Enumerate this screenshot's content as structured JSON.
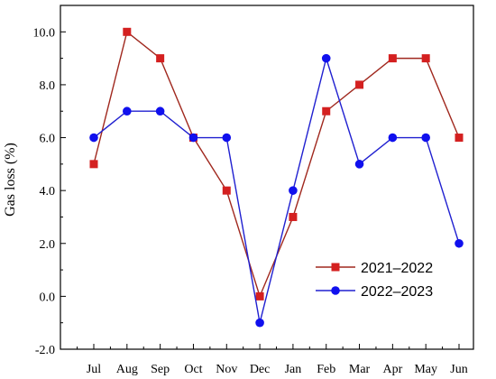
{
  "chart_data": {
    "type": "line",
    "title": "",
    "xlabel": "",
    "ylabel": "Gas loss (%)",
    "categories": [
      "Jul",
      "Aug",
      "Sep",
      "Oct",
      "Nov",
      "Dec",
      "Jan",
      "Feb",
      "Mar",
      "Apr",
      "May",
      "Jun"
    ],
    "ylim": [
      -2.0,
      11.0
    ],
    "yticks": [
      "-2.0",
      "0.0",
      "2.0",
      "4.0",
      "6.0",
      "8.0",
      "10.0"
    ],
    "grid": false,
    "legend_position": "bottom-right",
    "series": [
      {
        "name": "2021–2022",
        "marker": "square",
        "color": "#a0281e",
        "marker_color": "#d42020",
        "values": [
          5,
          10,
          9,
          6,
          4,
          0,
          3,
          7,
          8,
          9,
          9,
          6
        ]
      },
      {
        "name": "2022–2023",
        "marker": "circle",
        "color": "#2020d0",
        "marker_color": "#1010ee",
        "values": [
          6,
          7,
          7,
          6,
          6,
          -1,
          4,
          9,
          5,
          6,
          6,
          2
        ]
      }
    ]
  }
}
